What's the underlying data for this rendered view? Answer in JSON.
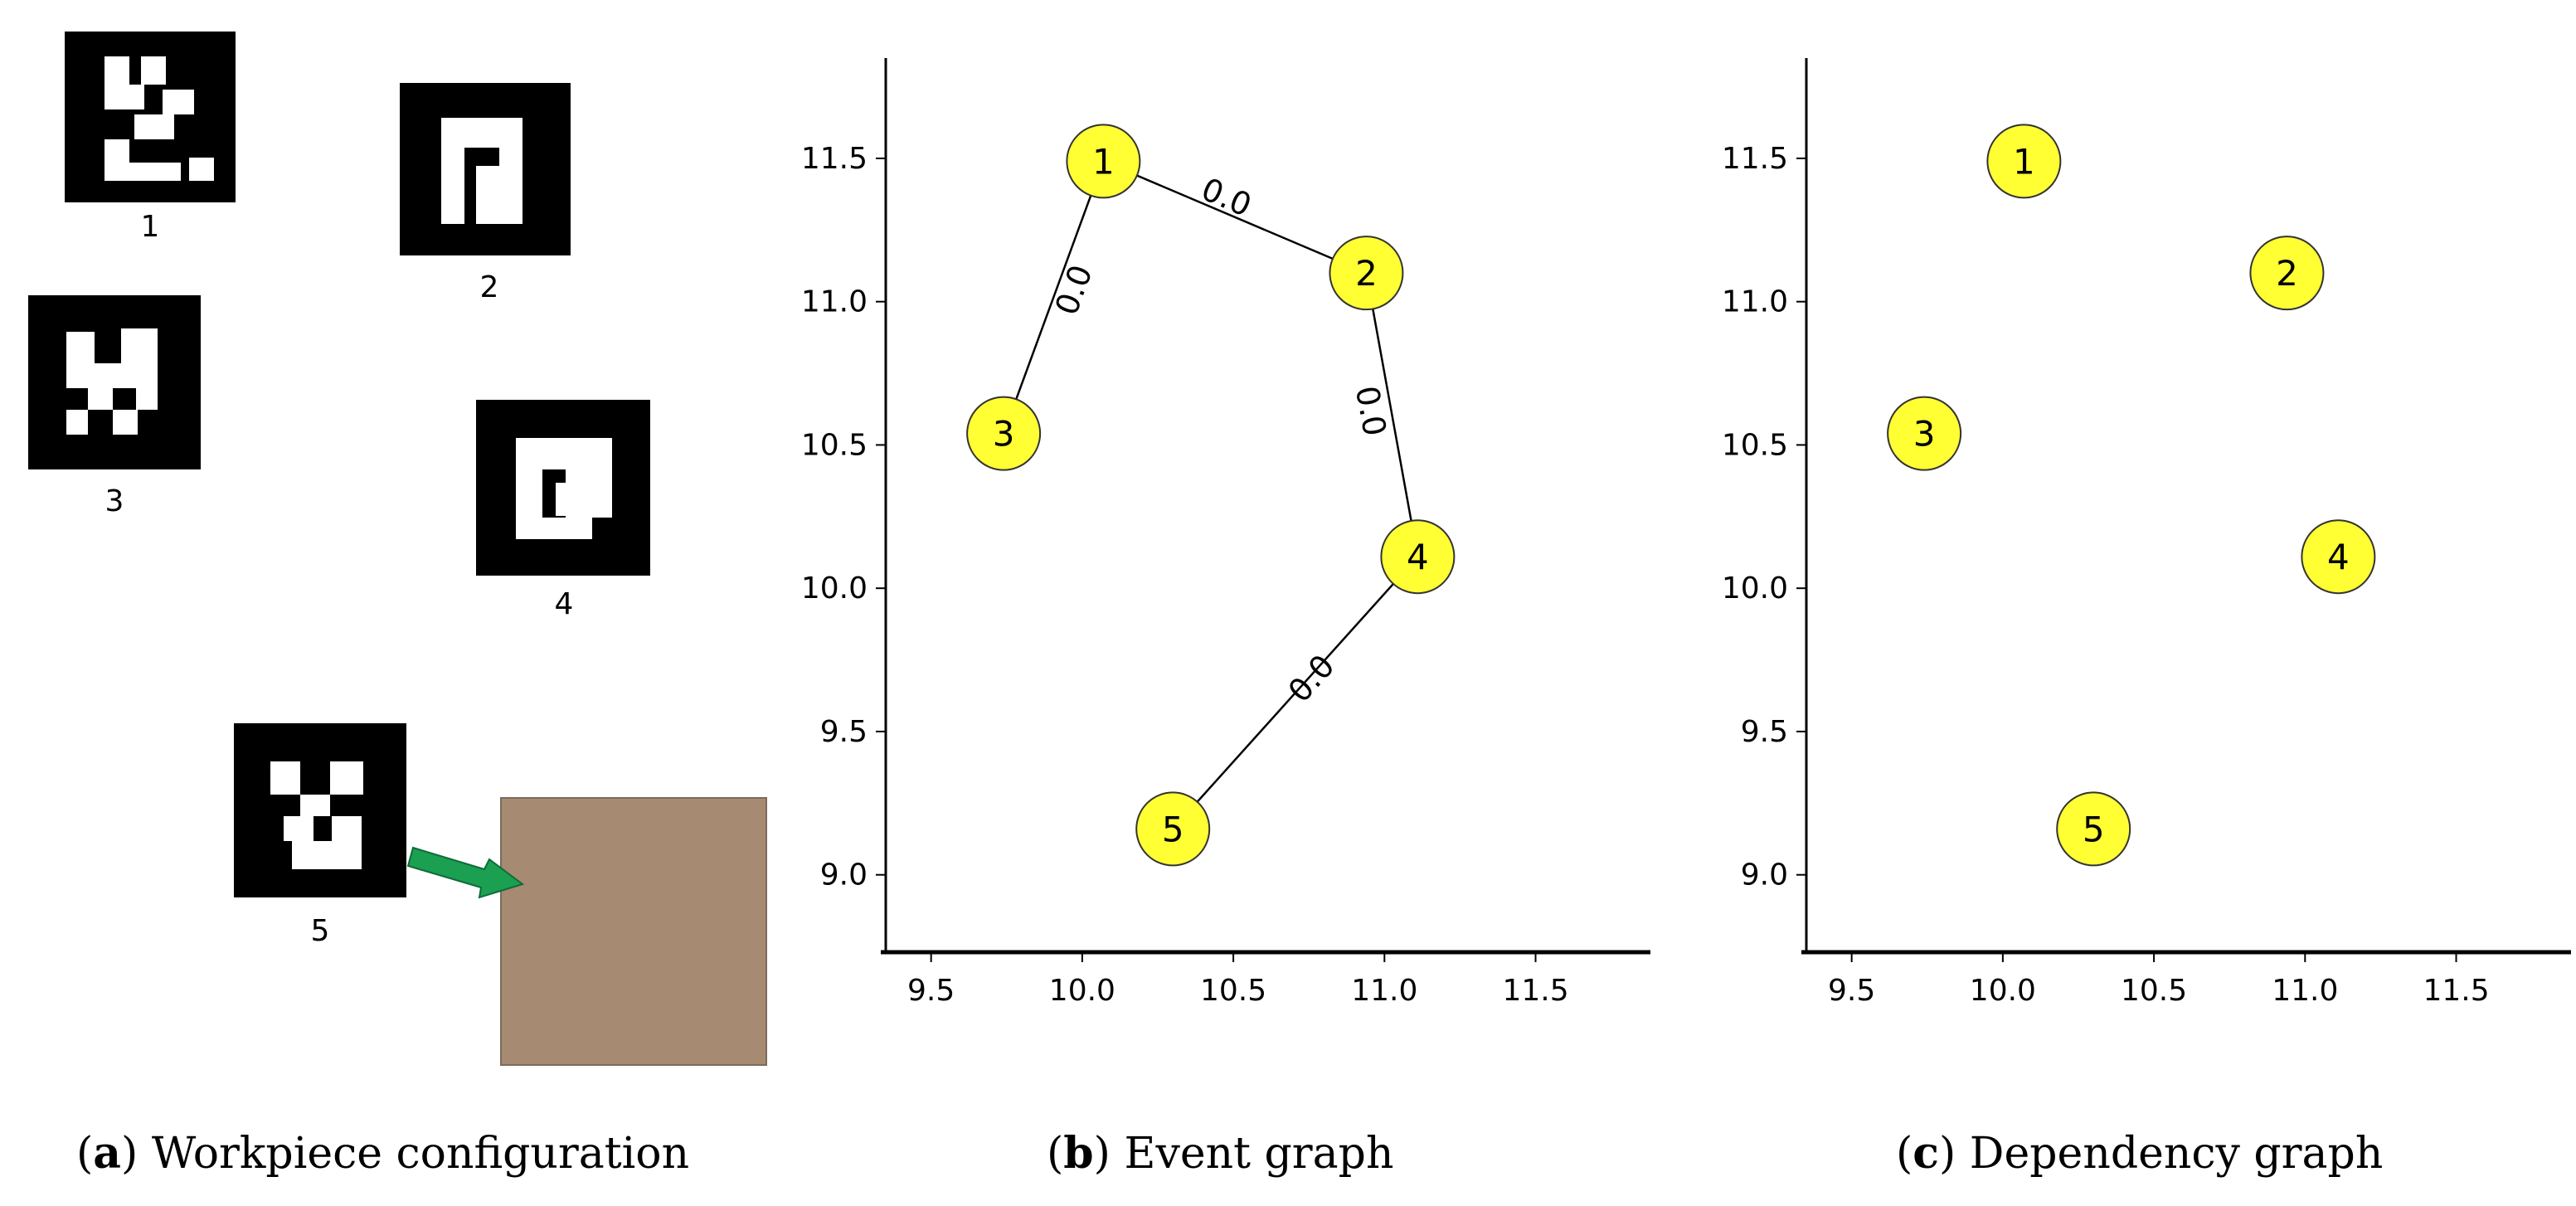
{
  "captions": [
    {
      "letter": "a",
      "text": "Workpiece configuration"
    },
    {
      "letter": "b",
      "text": "Event graph"
    },
    {
      "letter": "c",
      "text": "Dependency graph"
    }
  ],
  "markers": [
    {
      "id": "1",
      "label": "1"
    },
    {
      "id": "2",
      "label": "2"
    },
    {
      "id": "3",
      "label": "3"
    },
    {
      "id": "4",
      "label": "4"
    },
    {
      "id": "5",
      "label": "5"
    }
  ],
  "colors": {
    "node_fill": "#ffff33",
    "workpiece": "#a68a72",
    "arrow": "#1aa050"
  },
  "chart_data": [
    {
      "type": "scatter",
      "title": "Event graph",
      "xlim": [
        9.35,
        11.88
      ],
      "ylim": [
        8.73,
        11.85
      ],
      "x_ticks": [
        "9.5",
        "10.0",
        "10.5",
        "11.0",
        "11.5"
      ],
      "y_ticks": [
        "9.0",
        "9.5",
        "10.0",
        "10.5",
        "11.0",
        "11.5"
      ],
      "nodes": [
        {
          "id": "1",
          "x": 10.07,
          "y": 11.49
        },
        {
          "id": "2",
          "x": 10.94,
          "y": 11.1
        },
        {
          "id": "3",
          "x": 9.74,
          "y": 10.54
        },
        {
          "id": "4",
          "x": 11.11,
          "y": 10.11
        },
        {
          "id": "5",
          "x": 10.3,
          "y": 9.16
        }
      ],
      "edges": [
        {
          "from": "1",
          "to": "2",
          "label": "0.0"
        },
        {
          "from": "1",
          "to": "3",
          "label": "0.0"
        },
        {
          "from": "2",
          "to": "4",
          "label": "0.0"
        },
        {
          "from": "4",
          "to": "5",
          "label": "0.0"
        }
      ]
    },
    {
      "type": "scatter",
      "title": "Dependency graph",
      "xlim": [
        9.35,
        11.88
      ],
      "ylim": [
        8.73,
        11.85
      ],
      "x_ticks": [
        "9.5",
        "10.0",
        "10.5",
        "11.0",
        "11.5"
      ],
      "y_ticks": [
        "9.0",
        "9.5",
        "10.0",
        "10.5",
        "11.0",
        "11.5"
      ],
      "nodes": [
        {
          "id": "1",
          "x": 10.07,
          "y": 11.49
        },
        {
          "id": "2",
          "x": 10.94,
          "y": 11.1
        },
        {
          "id": "3",
          "x": 9.74,
          "y": 10.54
        },
        {
          "id": "4",
          "x": 11.11,
          "y": 10.11
        },
        {
          "id": "5",
          "x": 10.3,
          "y": 9.16
        }
      ],
      "edges": []
    }
  ]
}
